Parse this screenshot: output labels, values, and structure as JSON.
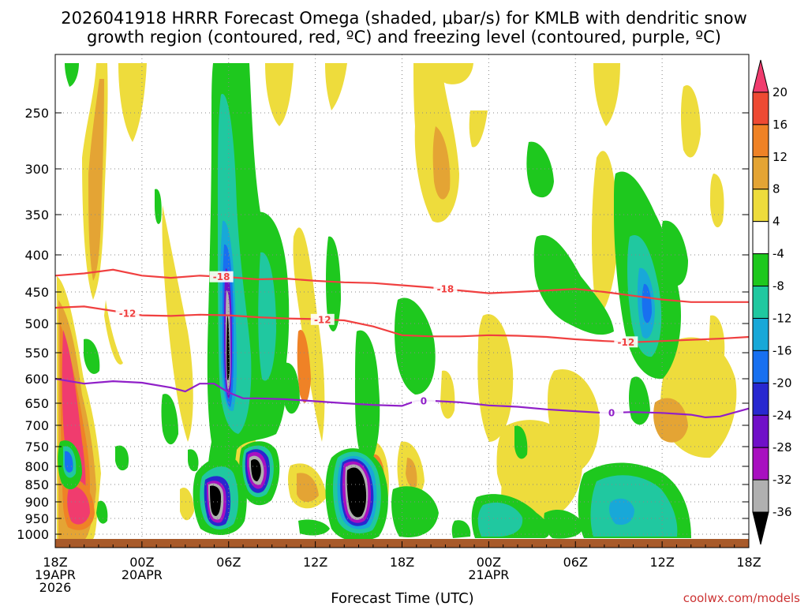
{
  "chart_data": {
    "type": "heatmap",
    "title_line1": "2026041918 HRRR Forecast Omega (shaded, μbar/s) for KMLB with dendritic snow",
    "title_line2": "growth region (contoured, red, ºC) and freezing level (contoured, purple, ºC)",
    "xlabel": "Forecast Time (UTC)",
    "credit": "coolwx.com/models",
    "x_range_hours": [
      0,
      48
    ],
    "y_range_hpa": [
      1015,
      200
    ],
    "x_ticks": [
      {
        "h": 0,
        "l1": "18Z",
        "l2": "19APR",
        "l3": "2026"
      },
      {
        "h": 6,
        "l1": "00Z",
        "l2": "20APR",
        "l3": ""
      },
      {
        "h": 12,
        "l1": "06Z",
        "l2": "",
        "l3": ""
      },
      {
        "h": 18,
        "l1": "12Z",
        "l2": "",
        "l3": ""
      },
      {
        "h": 24,
        "l1": "18Z",
        "l2": "",
        "l3": ""
      },
      {
        "h": 30,
        "l1": "00Z",
        "l2": "21APR",
        "l3": ""
      },
      {
        "h": 36,
        "l1": "06Z",
        "l2": "",
        "l3": ""
      },
      {
        "h": 42,
        "l1": "12Z",
        "l2": "",
        "l3": ""
      },
      {
        "h": 48,
        "l1": "18Z",
        "l2": "",
        "l3": ""
      }
    ],
    "y_ticks": [
      250,
      300,
      350,
      400,
      450,
      500,
      550,
      600,
      650,
      700,
      750,
      800,
      850,
      900,
      950,
      1000
    ],
    "colorbar_labels": [
      "20",
      "16",
      "12",
      "8",
      "4",
      "-4",
      "-8",
      "-12",
      "-16",
      "-20",
      "-24",
      "-28",
      "-32",
      "-36"
    ],
    "colorbar_colors": [
      "#f03c6e",
      "#ee4a33",
      "#ef8226",
      "#e4a434",
      "#eedc3c",
      "#ffffff",
      "#1ec81e",
      "#20c8a0",
      "#18a8d8",
      "#1870f0",
      "#2828d0",
      "#7010c8",
      "#a810c0",
      "#b0b0b0",
      "#000000"
    ],
    "bins": {
      "green": "#1ec81e",
      "teal": "#20c8a0",
      "cyan": "#18a8d8",
      "blue": "#1870f0",
      "navy": "#2828d0",
      "purple": "#7010c8",
      "violet": "#a810c0",
      "gray": "#b0b0b0",
      "black": "#000000",
      "yellow": "#eedc3c",
      "tan": "#e4a434",
      "orange": "#ef8226",
      "red": "#ee4a33",
      "pink": "#f03c6e"
    },
    "contours": [
      {
        "name": "minus18",
        "label": "-18",
        "color": "#f04040",
        "points": [
          [
            0,
            428
          ],
          [
            2,
            425
          ],
          [
            4,
            420
          ],
          [
            6,
            428
          ],
          [
            8,
            431
          ],
          [
            10,
            428
          ],
          [
            12,
            430
          ],
          [
            14,
            433
          ],
          [
            16,
            432
          ],
          [
            18,
            435
          ],
          [
            20,
            437
          ],
          [
            22,
            438
          ],
          [
            24,
            441
          ],
          [
            26,
            444
          ],
          [
            28,
            448
          ],
          [
            30,
            452
          ],
          [
            32,
            450
          ],
          [
            34,
            448
          ],
          [
            36,
            446
          ],
          [
            38,
            450
          ],
          [
            40,
            456
          ],
          [
            42,
            462
          ],
          [
            44,
            466
          ],
          [
            46,
            466
          ],
          [
            48,
            466
          ]
        ],
        "label_positions": [
          11.5,
          27
        ]
      },
      {
        "name": "minus12",
        "label": "-12",
        "color": "#f04040",
        "points": [
          [
            0,
            475
          ],
          [
            2,
            473
          ],
          [
            4,
            480
          ],
          [
            6,
            487
          ],
          [
            8,
            488
          ],
          [
            10,
            486
          ],
          [
            12,
            487
          ],
          [
            14,
            490
          ],
          [
            16,
            492
          ],
          [
            18,
            493
          ],
          [
            20,
            495
          ],
          [
            22,
            505
          ],
          [
            24,
            520
          ],
          [
            26,
            522
          ],
          [
            28,
            522
          ],
          [
            30,
            520
          ],
          [
            32,
            521
          ],
          [
            34,
            523
          ],
          [
            36,
            527
          ],
          [
            38,
            530
          ],
          [
            40,
            532
          ],
          [
            42,
            530
          ],
          [
            44,
            528
          ],
          [
            46,
            526
          ],
          [
            48,
            523
          ]
        ],
        "label_positions": [
          5,
          18.5,
          39.5
        ]
      },
      {
        "name": "zero",
        "label": "0",
        "color": "#9020c8",
        "points": [
          [
            0,
            600
          ],
          [
            2,
            610
          ],
          [
            4,
            605
          ],
          [
            6,
            608
          ],
          [
            8,
            618
          ],
          [
            9,
            626
          ],
          [
            10,
            610
          ],
          [
            11,
            610
          ],
          [
            12,
            628
          ],
          [
            13,
            640
          ],
          [
            14,
            640
          ],
          [
            16,
            642
          ],
          [
            18,
            646
          ],
          [
            20,
            650
          ],
          [
            22,
            654
          ],
          [
            24,
            656
          ],
          [
            25,
            645
          ],
          [
            26,
            645
          ],
          [
            28,
            648
          ],
          [
            30,
            655
          ],
          [
            32,
            658
          ],
          [
            34,
            664
          ],
          [
            36,
            668
          ],
          [
            38,
            672
          ],
          [
            40,
            670
          ],
          [
            42,
            672
          ],
          [
            44,
            676
          ],
          [
            45,
            682
          ],
          [
            46,
            680
          ],
          [
            48,
            662
          ]
        ],
        "label_positions": [
          25.5,
          38.5
        ]
      }
    ]
  }
}
